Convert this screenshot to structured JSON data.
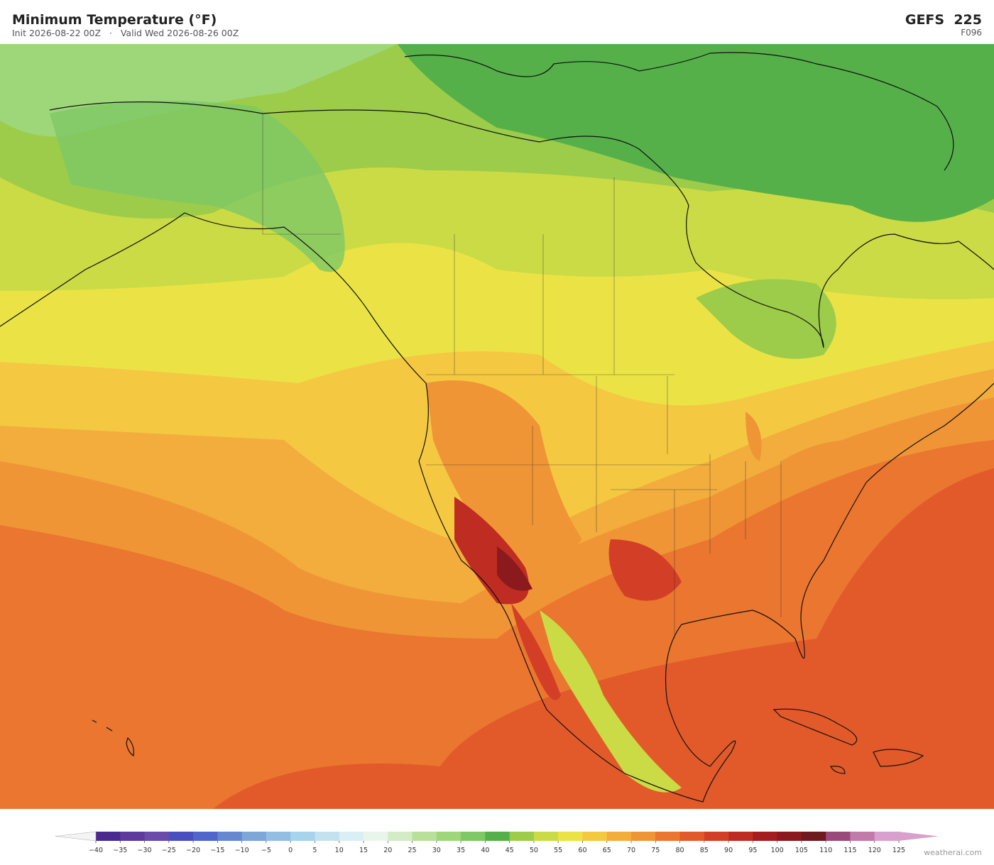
{
  "header": {
    "title": "Minimum Temperature  (°F)",
    "subtitle": "Init 2026-08-22 00Z   ·   Valid Wed 2026-08-26 00Z",
    "model": "GEFS  225",
    "forecast_hour": "F096"
  },
  "colorbar": {
    "ticks": [
      {
        "value": -40,
        "label": "−40"
      },
      {
        "value": -35,
        "label": "−35"
      },
      {
        "value": -30,
        "label": "−30"
      },
      {
        "value": -25,
        "label": "−25"
      },
      {
        "value": -20,
        "label": "−20"
      },
      {
        "value": -15,
        "label": "−15"
      },
      {
        "value": -10,
        "label": "−10"
      },
      {
        "value": -5,
        "label": "−5"
      },
      0,
      5,
      10,
      15,
      20,
      25,
      30,
      35,
      40,
      45,
      50,
      55,
      60,
      65,
      70,
      75,
      80,
      85,
      90,
      95,
      100,
      105,
      110,
      115,
      120,
      125
    ],
    "colors": [
      "#4b2a8f",
      "#5e3a9e",
      "#6a4aab",
      "#4a4fc0",
      "#4f66cc",
      "#6688d0",
      "#7ea6d9",
      "#93bde3",
      "#a8d3ec",
      "#c2e2f0",
      "#daeff3",
      "#e8f5ea",
      "#d2ecc6",
      "#b9e09a",
      "#9ed67a",
      "#7ec865",
      "#55b04a",
      "#9ccc4a",
      "#cbdb45",
      "#ebe346",
      "#f5c842",
      "#f2ad3d",
      "#ef9536",
      "#ea7630",
      "#e25a2a",
      "#d23f26",
      "#bf2c22",
      "#a51d1f",
      "#8a1a1d",
      "#6f1a1f",
      "#9a4a7a",
      "#c27aa8",
      "#d8a0cc"
    ],
    "under_color": "#f4f4f4",
    "over_color": "#d8a0cc"
  },
  "watermark": "weatherai.com"
}
